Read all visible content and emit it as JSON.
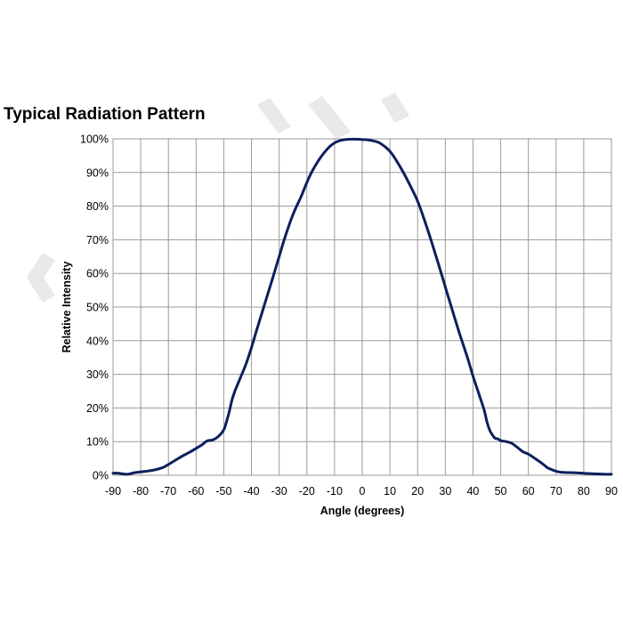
{
  "chart_data": {
    "type": "line",
    "title": "Typical Radiation Pattern",
    "xlabel": "Angle (degrees)",
    "ylabel": "Relative Intensity",
    "xlim": [
      -90,
      90
    ],
    "ylim": [
      0,
      100
    ],
    "x_ticks": [
      "-90",
      "-80",
      "-70",
      "-60",
      "-50",
      "-40",
      "-30",
      "-20",
      "-10",
      "0",
      "10",
      "20",
      "30",
      "40",
      "50",
      "60",
      "70",
      "80",
      "90"
    ],
    "y_ticks": [
      "0%",
      "10%",
      "20%",
      "30%",
      "40%",
      "50%",
      "60%",
      "70%",
      "80%",
      "90%",
      "100%"
    ],
    "grid": true,
    "legend": "none",
    "series": [
      {
        "color": "#0d1f5c",
        "x": [
          -90,
          -88,
          -85,
          -82,
          -80,
          -78,
          -75,
          -72,
          -70,
          -67,
          -65,
          -62,
          -60,
          -58,
          -56,
          -54,
          -52,
          -50,
          -49,
          -48,
          -47,
          -46,
          -45,
          -44,
          -42,
          -40,
          -38,
          -35,
          -32,
          -30,
          -28,
          -25,
          -22,
          -20,
          -18,
          -15,
          -12,
          -10,
          -8,
          -6,
          -4,
          -2,
          0,
          2,
          4,
          6,
          8,
          10,
          12,
          15,
          18,
          20,
          22,
          25,
          28,
          30,
          32,
          35,
          38,
          40,
          42,
          44,
          45,
          46,
          47,
          48,
          49,
          50,
          52,
          54,
          56,
          58,
          60,
          62,
          65,
          67,
          70,
          72,
          75,
          78,
          80,
          82,
          85,
          88,
          90
        ],
        "y": [
          0.6,
          0.6,
          0.3,
          0.8,
          1.0,
          1.2,
          1.6,
          2.3,
          3.2,
          4.7,
          5.7,
          7.0,
          8.0,
          9.0,
          10.2,
          10.5,
          11.5,
          13.5,
          16,
          19,
          22.5,
          25,
          27,
          29,
          33,
          38,
          43.5,
          51.5,
          59.5,
          65,
          70.5,
          77.5,
          83,
          87,
          90.5,
          94.5,
          97.5,
          98.8,
          99.5,
          99.8,
          99.9,
          99.9,
          99.8,
          99.7,
          99.4,
          98.9,
          97.8,
          96.3,
          94.0,
          89.8,
          85.0,
          81.5,
          77.0,
          69.5,
          61.5,
          56.0,
          50.5,
          42.5,
          35.0,
          29.5,
          24.5,
          19.5,
          16.0,
          13.5,
          12.0,
          11.0,
          10.8,
          10.3,
          10.0,
          9.5,
          8.3,
          7.0,
          6.3,
          5.2,
          3.5,
          2.2,
          1.2,
          0.9,
          0.8,
          0.7,
          0.6,
          0.5,
          0.4,
          0.3,
          0.3
        ]
      }
    ]
  }
}
